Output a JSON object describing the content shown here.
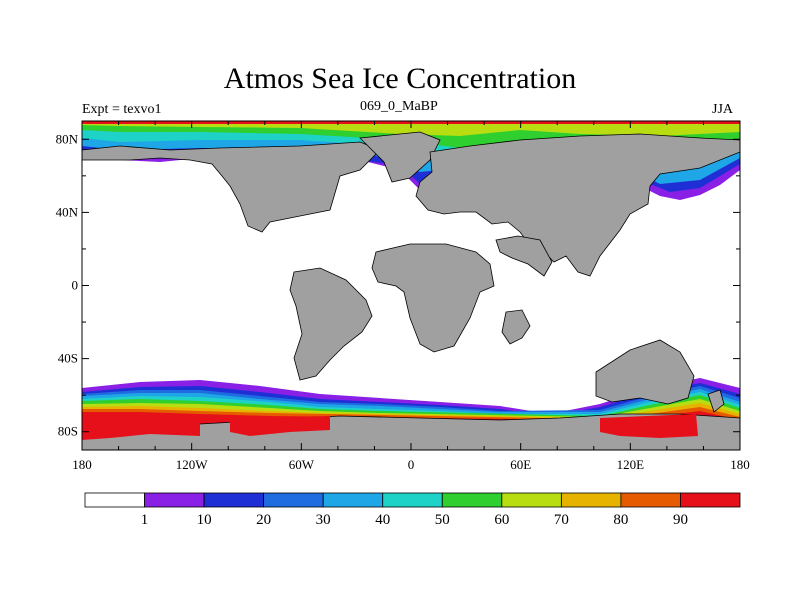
{
  "title": "Atmos Sea Ice Concentration",
  "subtitle_left": "Expt = texvo1",
  "subtitle_center": "069_0_MaBP",
  "subtitle_right": "JJA",
  "map": {
    "projection": "cylindrical equidistant",
    "lon_range": [
      -180,
      180
    ],
    "lat_range": [
      -90,
      90
    ],
    "land_color": "#a0a0a0",
    "ocean_color": "#ffffff",
    "x_ticks": [
      {
        "lon": -180,
        "label": "180"
      },
      {
        "lon": -120,
        "label": "120W"
      },
      {
        "lon": -60,
        "label": "60W"
      },
      {
        "lon": 0,
        "label": "0"
      },
      {
        "lon": 60,
        "label": "60E"
      },
      {
        "lon": 120,
        "label": "120E"
      },
      {
        "lon": 180,
        "label": "180"
      }
    ],
    "y_ticks": [
      {
        "lat": 80,
        "label": "80N"
      },
      {
        "lat": 40,
        "label": "40N"
      },
      {
        "lat": 0,
        "label": "0"
      },
      {
        "lat": -40,
        "label": "40S"
      },
      {
        "lat": -80,
        "label": "80S"
      }
    ]
  },
  "colorbar": {
    "colors": [
      "#ffffff",
      "#8a1fe6",
      "#1f2fd6",
      "#1f6ce0",
      "#1fa6e6",
      "#1fd2c8",
      "#2fcf2f",
      "#b8dd10",
      "#e6b400",
      "#e65a00",
      "#e6101a"
    ],
    "labels": [
      "1",
      "10",
      "20",
      "30",
      "40",
      "50",
      "60",
      "70",
      "80",
      "90"
    ]
  }
}
